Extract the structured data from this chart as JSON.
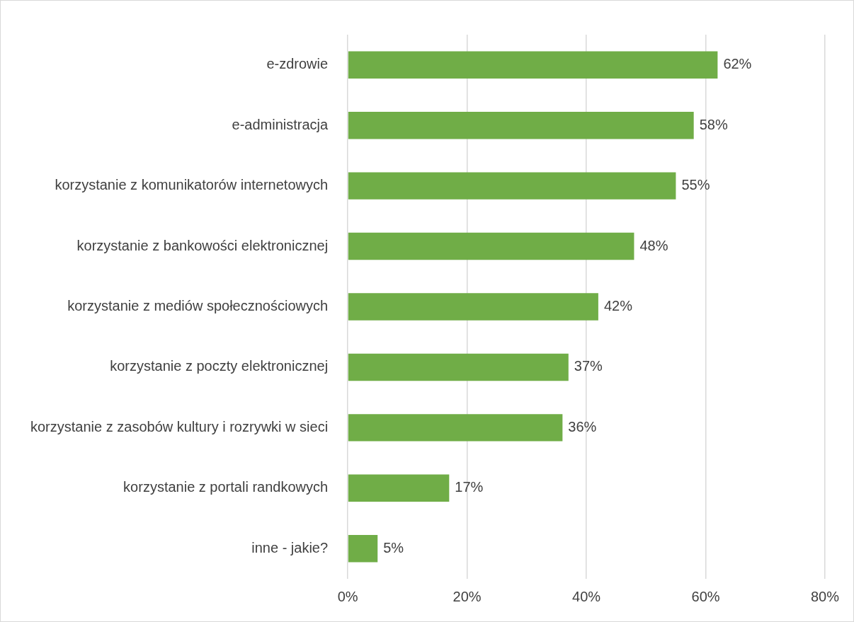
{
  "chart_data": {
    "type": "bar",
    "orientation": "horizontal",
    "categories": [
      "e-zdrowie",
      "e-administracja",
      "korzystanie z komunikatorów internetowych",
      "korzystanie z bankowości elektronicznej",
      "korzystanie z mediów społecznościowych",
      "korzystanie z poczty elektronicznej",
      "korzystanie z zasobów kultury i rozrywki w sieci",
      "korzystanie z portali randkowych",
      "inne - jakie?"
    ],
    "values": [
      62,
      58,
      55,
      48,
      42,
      37,
      36,
      17,
      5
    ],
    "value_labels": [
      "62%",
      "58%",
      "55%",
      "48%",
      "42%",
      "37%",
      "36%",
      "17%",
      "5%"
    ],
    "color": "#70ad47",
    "xlim": [
      0,
      80
    ],
    "xticks": [
      {
        "value": 0,
        "label": "0%"
      },
      {
        "value": 20,
        "label": "20%"
      },
      {
        "value": 40,
        "label": "40%"
      },
      {
        "value": 60,
        "label": "60%"
      },
      {
        "value": 80,
        "label": "80%"
      }
    ],
    "grid": "x",
    "legend": false
  }
}
